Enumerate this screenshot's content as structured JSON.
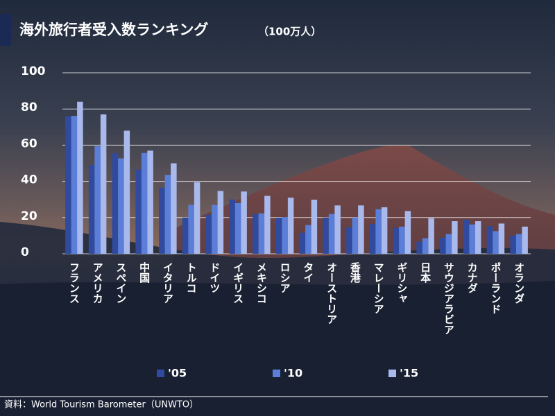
{
  "chart_data": {
    "type": "bar",
    "title": "海外旅行者受入数ランキング",
    "subtitle": "（100万人）",
    "source": "資料：World Tourism Barometer（UNWTO）",
    "categories": [
      "フランス",
      "アメリカ",
      "スペイン",
      "中国",
      "イタリア",
      "トルコ",
      "ドイツ",
      "イギリス",
      "メキシコ",
      "ロシア",
      "タイ",
      "オーストリア",
      "香港",
      "マレーシア",
      "ギリシャ",
      "日本",
      "サウジアラビア",
      "カナダ",
      "ポーランド",
      "オランダ"
    ],
    "series": [
      {
        "name": "'05",
        "color": "#2f4a9e",
        "values": [
          75.9,
          49,
          55.5,
          46.5,
          36.5,
          20,
          21.5,
          30,
          21.9,
          19.9,
          11.6,
          20,
          14.6,
          16.4,
          14.3,
          6.7,
          8.9,
          18.8,
          15.2,
          10
        ]
      },
      {
        "name": "'10",
        "color": "#5b7fd8",
        "values": [
          76.2,
          59.5,
          52.7,
          55.7,
          43.6,
          27,
          27,
          28,
          22.3,
          20.3,
          15.9,
          22,
          20,
          24.6,
          15,
          8.6,
          10.9,
          16.2,
          12.5,
          10.9
        ]
      },
      {
        "name": "'15",
        "color": "#a9b9ec",
        "values": [
          84,
          77,
          68,
          57,
          50,
          39.5,
          34.7,
          34.4,
          32,
          31,
          29.9,
          26.7,
          26.7,
          25.7,
          23.6,
          19.7,
          18,
          18,
          16.7,
          15
        ]
      }
    ],
    "ylim": [
      0,
      100
    ],
    "yticks": [
      0,
      20,
      40,
      60,
      80,
      100
    ],
    "grid": true,
    "legend": "bottom"
  }
}
